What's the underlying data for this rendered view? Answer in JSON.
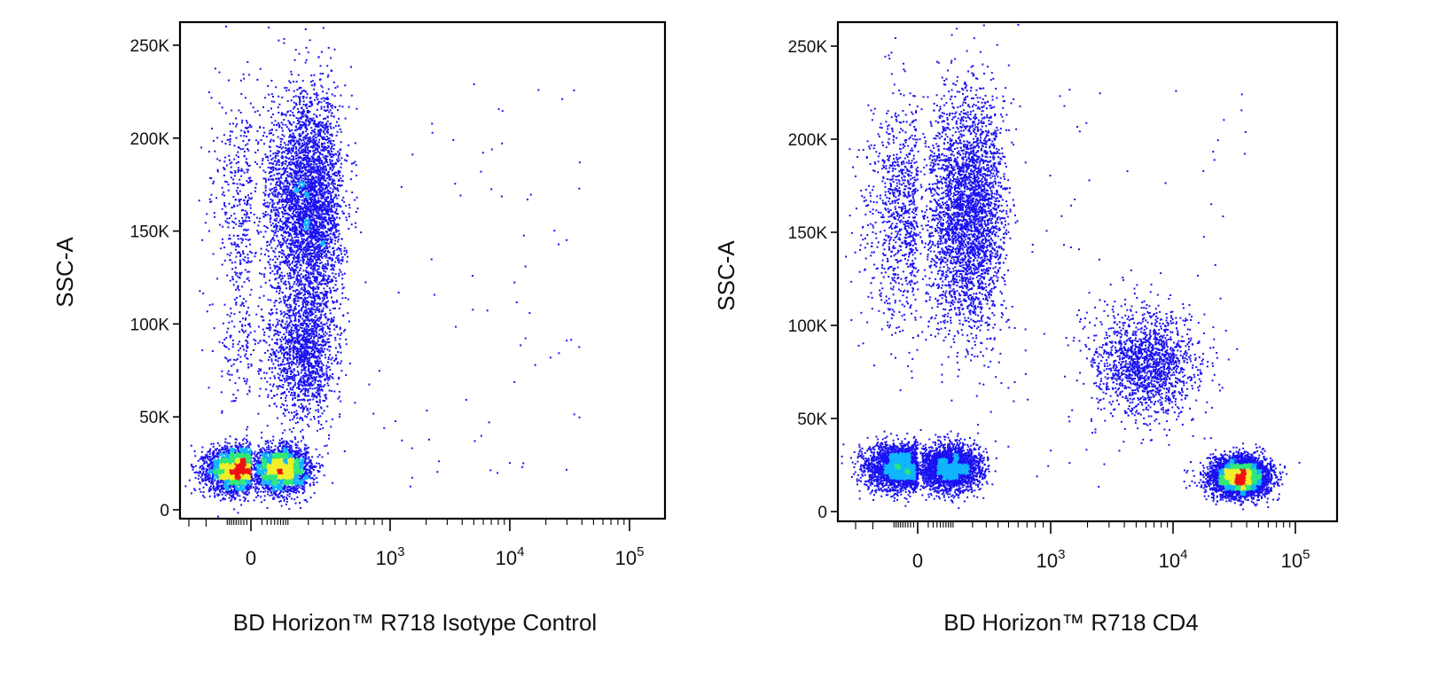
{
  "colors": {
    "density_low": "#1a12f0",
    "density_mid_low": "#10b5ff",
    "density_mid": "#2fe878",
    "density_mid_high": "#f0f02a",
    "density_high": "#f01212"
  },
  "chart_data": [
    {
      "type": "scatter",
      "subtype": "flow-cytometry density dot plot",
      "xlabel": "BD Horizon™ R718 Isotype Control",
      "ylabel": "SSC-A",
      "x_scale": "biexponential",
      "xlim": [
        -300,
        200000
      ],
      "ylim": [
        0,
        262144
      ],
      "y_ticks": [
        {
          "value": 0,
          "label": "0"
        },
        {
          "value": 50000,
          "label": "50K"
        },
        {
          "value": 100000,
          "label": "100K"
        },
        {
          "value": 150000,
          "label": "150K"
        },
        {
          "value": 200000,
          "label": "200K"
        },
        {
          "value": 250000,
          "label": "250K"
        }
      ],
      "x_ticks": [
        {
          "value": 0,
          "label": "0",
          "exp": ""
        },
        {
          "value": 1000,
          "label": "10",
          "exp": "3"
        },
        {
          "value": 10000,
          "label": "10",
          "exp": "4"
        },
        {
          "value": 100000,
          "label": "10",
          "exp": "5"
        }
      ],
      "populations": [
        {
          "x_center": 0,
          "y_center": 22000,
          "x_spread": 90,
          "y_spread": 6000,
          "relative_density": "high"
        },
        {
          "x_center": 180,
          "y_center": 165000,
          "x_spread": 130,
          "y_spread": 30000,
          "relative_density": "medium"
        },
        {
          "x_center": 160,
          "y_center": 85000,
          "x_spread": 110,
          "y_spread": 18000,
          "relative_density": "low"
        }
      ]
    },
    {
      "type": "scatter",
      "subtype": "flow-cytometry density dot plot",
      "xlabel": "BD Horizon™ R718 CD4",
      "ylabel": "SSC-A",
      "x_scale": "biexponential",
      "xlim": [
        -300,
        200000
      ],
      "ylim": [
        0,
        262144
      ],
      "y_ticks": [
        {
          "value": 0,
          "label": "0"
        },
        {
          "value": 50000,
          "label": "50K"
        },
        {
          "value": 100000,
          "label": "100K"
        },
        {
          "value": 150000,
          "label": "150K"
        },
        {
          "value": 200000,
          "label": "200K"
        },
        {
          "value": 250000,
          "label": "250K"
        }
      ],
      "x_ticks": [
        {
          "value": 0,
          "label": "0",
          "exp": ""
        },
        {
          "value": 1000,
          "label": "10",
          "exp": "3"
        },
        {
          "value": 10000,
          "label": "10",
          "exp": "4"
        },
        {
          "value": 100000,
          "label": "10",
          "exp": "5"
        }
      ],
      "populations": [
        {
          "x_center": 0,
          "y_center": 24000,
          "x_spread": 110,
          "y_spread": 6000,
          "relative_density": "high"
        },
        {
          "x_center": 120,
          "y_center": 160000,
          "x_spread": 150,
          "y_spread": 32000,
          "relative_density": "medium"
        },
        {
          "x_center": 6000,
          "y_center": 80000,
          "x_spread": 2500,
          "y_spread": 14000,
          "relative_density": "low"
        },
        {
          "x_center": 35000,
          "y_center": 19000,
          "x_spread": 7000,
          "y_spread": 5000,
          "relative_density": "high"
        }
      ]
    }
  ]
}
